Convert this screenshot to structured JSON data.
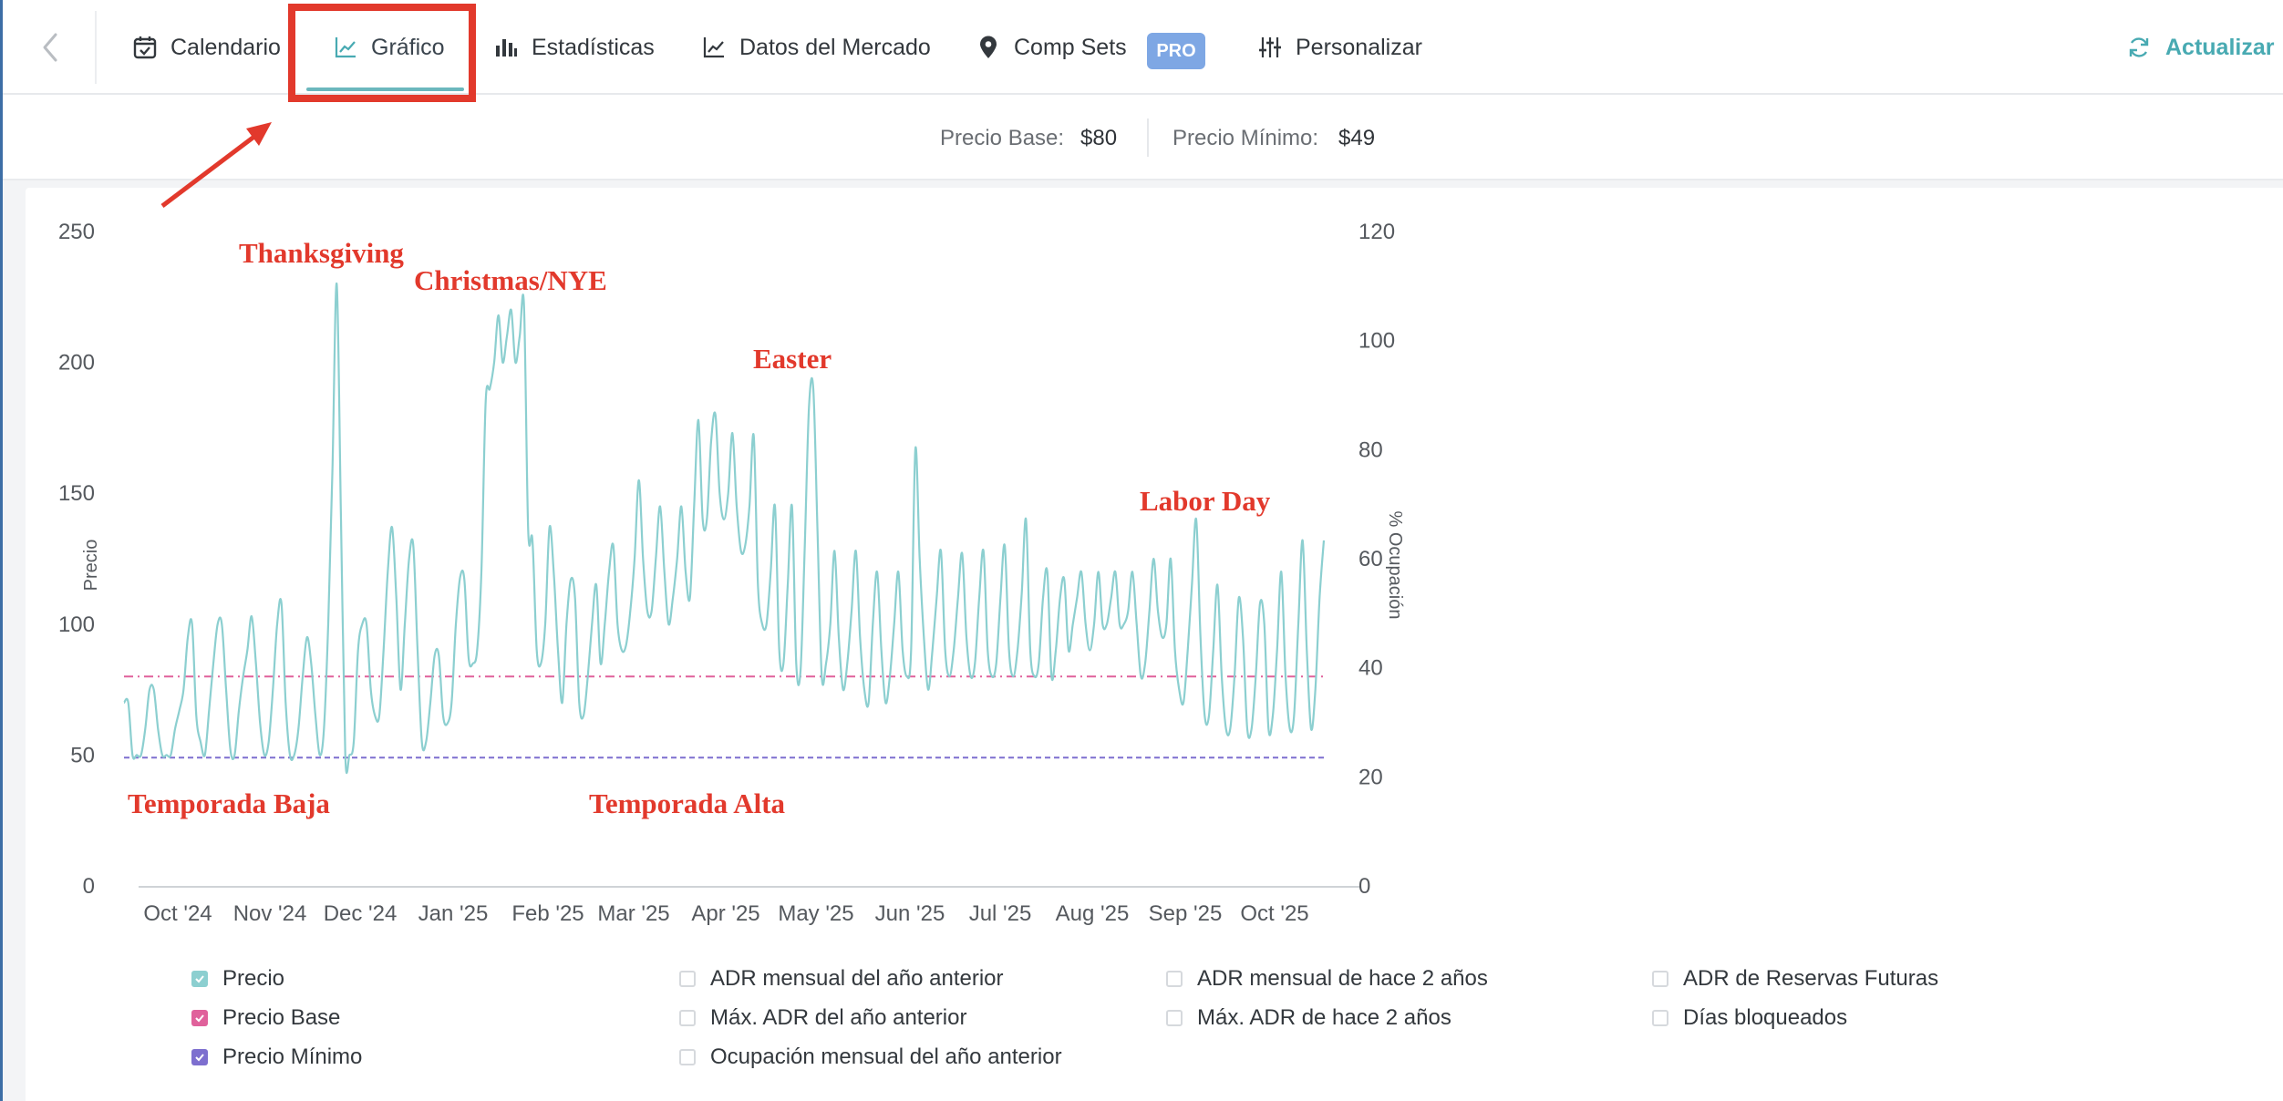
{
  "colors": {
    "accent": "#48aab2",
    "price_line": "#8ccfd0",
    "base_line": "#e0619b",
    "min_line": "#7d6fcf",
    "annotation": "#e2392c",
    "pro_badge": "#7ea7e4"
  },
  "nav": {
    "back_icon": "chevron-left-icon",
    "tabs": [
      {
        "label": "Calendario",
        "icon": "calendar-check-icon"
      },
      {
        "label": "Gráfico",
        "icon": "line-chart-icon",
        "active": true
      },
      {
        "label": "Estadísticas",
        "icon": "bar-chart-icon"
      },
      {
        "label": "Datos del Mercado",
        "icon": "line-chart-icon"
      },
      {
        "label": "Comp Sets",
        "icon": "map-pin-icon"
      },
      {
        "label": "Personalizar",
        "icon": "sliders-icon"
      }
    ],
    "pro_badge": "PRO",
    "refresh_label": "Actualizar",
    "refresh_icon": "refresh-icon"
  },
  "price_bar": {
    "base_label": "Precio Base:",
    "base_value": "$80",
    "min_label": "Precio Mínimo:",
    "min_value": "$49"
  },
  "chart_data": {
    "type": "line",
    "xlabel": "",
    "ylabel": "Precio",
    "y2label": "% Ocupación",
    "ylim": [
      0,
      250
    ],
    "y2lim": [
      0,
      120
    ],
    "yticks": [
      "0",
      "50",
      "100",
      "150",
      "200",
      "250"
    ],
    "y2ticks": [
      "0",
      "20",
      "40",
      "60",
      "80",
      "100",
      "120"
    ],
    "xticks": [
      "Oct '24",
      "Nov '24",
      "Dec '24",
      "Jan '25",
      "Feb '25",
      "Mar '25",
      "Apr '25",
      "May '25",
      "Jun '25",
      "Jul '25",
      "Aug '25",
      "Sep '25",
      "Oct '25"
    ],
    "grid": false,
    "series": [
      {
        "name": "Precio",
        "y": [
          70,
          70,
          50,
          50,
          50,
          60,
          75,
          75,
          60,
          50,
          50,
          50,
          60,
          67,
          75,
          95,
          100,
          65,
          55,
          50,
          67,
          85,
          100,
          100,
          75,
          52,
          50,
          67,
          80,
          90,
          103,
          85,
          62,
          50,
          55,
          75,
          100,
          108,
          70,
          50,
          50,
          60,
          80,
          95,
          85,
          65,
          50,
          60,
          100,
          160,
          230,
          140,
          50,
          50,
          55,
          90,
          100,
          100,
          75,
          65,
          65,
          90,
          120,
          137,
          110,
          75,
          100,
          125,
          130,
          90,
          55,
          55,
          70,
          88,
          88,
          65,
          62,
          70,
          100,
          118,
          117,
          87,
          85,
          90,
          120,
          185,
          190,
          200,
          218,
          200,
          210,
          220,
          200,
          210,
          222,
          136,
          132,
          90,
          85,
          100,
          137,
          120,
          90,
          70,
          100,
          117,
          110,
          70,
          65,
          80,
          100,
          115,
          85,
          100,
          120,
          130,
          100,
          90,
          92,
          105,
          125,
          155,
          125,
          105,
          105,
          125,
          145,
          120,
          100,
          110,
          125,
          145,
          120,
          110,
          145,
          178,
          140,
          140,
          170,
          180,
          150,
          140,
          150,
          173,
          145,
          128,
          130,
          145,
          172,
          115,
          100,
          100,
          120,
          145,
          90,
          85,
          115,
          145,
          85,
          82,
          130,
          183,
          190,
          135,
          80,
          85,
          100,
          128,
          95,
          75,
          85,
          105,
          128,
          95,
          75,
          70,
          100,
          120,
          90,
          70,
          80,
          100,
          120,
          90,
          80,
          90,
          167,
          125,
          95,
          75,
          90,
          110,
          128,
          90,
          80,
          90,
          110,
          127,
          95,
          80,
          85,
          110,
          128,
          90,
          80,
          85,
          110,
          130,
          90,
          80,
          90,
          112,
          140,
          90,
          80,
          85,
          110,
          120,
          80,
          90,
          110,
          117,
          90,
          100,
          110,
          120,
          100,
          90,
          100,
          120,
          100,
          100,
          110,
          120,
          100,
          100,
          105,
          120,
          100,
          80,
          85,
          105,
          125,
          105,
          95,
          100,
          125,
          90,
          75,
          70,
          90,
          115,
          140,
          95,
          65,
          65,
          90,
          115,
          80,
          60,
          60,
          80,
          110,
          95,
          60,
          60,
          80,
          108,
          100,
          60,
          65,
          90,
          120,
          80,
          60,
          65,
          100,
          132,
          90,
          60,
          75,
          110,
          132
        ]
      },
      {
        "name": "Precio Base",
        "y": [
          80
        ]
      },
      {
        "name": "Precio Mínimo",
        "y": [
          49
        ]
      }
    ],
    "annotations": [
      "Thanksgiving",
      "Christmas/NYE",
      "Easter",
      "Labor Day",
      "Temporada Baja",
      "Temporada Alta"
    ]
  },
  "legend": {
    "items": [
      {
        "label": "Precio",
        "checked": true,
        "color": "#8ccfd0"
      },
      {
        "label": "Precio Base",
        "checked": true,
        "color": "#e0619b"
      },
      {
        "label": "Precio Mínimo",
        "checked": true,
        "color": "#7d6fcf"
      },
      {
        "label": "ADR mensual del año anterior",
        "checked": false
      },
      {
        "label": "Máx. ADR del año anterior",
        "checked": false
      },
      {
        "label": "Ocupación mensual del año anterior",
        "checked": false
      },
      {
        "label": "ADR mensual de hace 2 años",
        "checked": false
      },
      {
        "label": "Máx. ADR de hace 2 años",
        "checked": false
      },
      {
        "label": "ADR de Reservas Futuras",
        "checked": false
      },
      {
        "label": "Días bloqueados",
        "checked": false
      }
    ]
  }
}
